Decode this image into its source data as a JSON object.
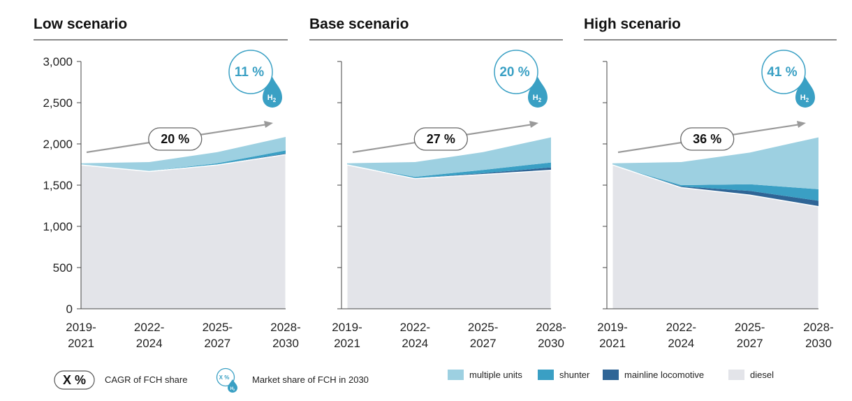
{
  "chart_data": [
    {
      "type": "area",
      "title": "Low scenario",
      "categories": [
        "2019-\n2021",
        "2022-\n2024",
        "2025-\n2027",
        "2028-\n2030"
      ],
      "ylim": [
        0,
        3000
      ],
      "yticks": [
        "0",
        "500",
        "1,000",
        "1,500",
        "2,000",
        "2,500",
        "3,000"
      ],
      "series": [
        {
          "name": "diesel",
          "values": [
            1745,
            1665,
            1745,
            1870
          ]
        },
        {
          "name": "mainline locomotive",
          "values": [
            0,
            2,
            5,
            15
          ]
        },
        {
          "name": "shunter",
          "values": [
            0,
            3,
            15,
            35
          ]
        },
        {
          "name": "multiple units",
          "values": [
            20,
            110,
            135,
            165
          ]
        }
      ],
      "cagr": "20 %",
      "market_share": "11 %"
    },
    {
      "type": "area",
      "title": "Base scenario",
      "categories": [
        "2019-\n2021",
        "2022-\n2024",
        "2025-\n2027",
        "2028-\n2030"
      ],
      "ylim": [
        0,
        3000
      ],
      "series": [
        {
          "name": "diesel",
          "values": [
            1745,
            1580,
            1630,
            1680
          ]
        },
        {
          "name": "mainline locomotive",
          "values": [
            0,
            5,
            15,
            35
          ]
        },
        {
          "name": "shunter",
          "values": [
            0,
            15,
            40,
            60
          ]
        },
        {
          "name": "multiple units",
          "values": [
            20,
            180,
            215,
            305
          ]
        }
      ],
      "cagr": "27 %",
      "market_share": "20 %"
    },
    {
      "type": "area",
      "title": "High scenario",
      "categories": [
        "2019-\n2021",
        "2022-\n2024",
        "2025-\n2027",
        "2028-\n2030"
      ],
      "ylim": [
        0,
        3000
      ],
      "series": [
        {
          "name": "diesel",
          "values": [
            1745,
            1470,
            1380,
            1240
          ]
        },
        {
          "name": "mainline locomotive",
          "values": [
            0,
            15,
            50,
            70
          ]
        },
        {
          "name": "shunter",
          "values": [
            0,
            15,
            80,
            140
          ]
        },
        {
          "name": "multiple units",
          "values": [
            20,
            280,
            385,
            630
          ]
        }
      ],
      "cagr": "36 %",
      "market_share": "41 %"
    }
  ],
  "h2_label": "H2",
  "colors": {
    "diesel": "#e3e4e9",
    "mainline locomotive": "#2f6596",
    "shunter": "#3a9fc4",
    "multiple units": "#9dd0e1",
    "accent": "#3aa0c4",
    "arrow": "#9a9a9a"
  },
  "legend": {
    "cagr_sample": "X %",
    "cagr_label": "CAGR of FCH share",
    "share_sample": "X %",
    "share_label": "Market share of FCH in 2030",
    "series_items": [
      {
        "name": "multiple units",
        "label": "multiple units"
      },
      {
        "name": "shunter",
        "label": "shunter"
      },
      {
        "name": "mainline locomotive",
        "label": "mainline locomotive"
      },
      {
        "name": "diesel",
        "label": "diesel"
      }
    ]
  }
}
